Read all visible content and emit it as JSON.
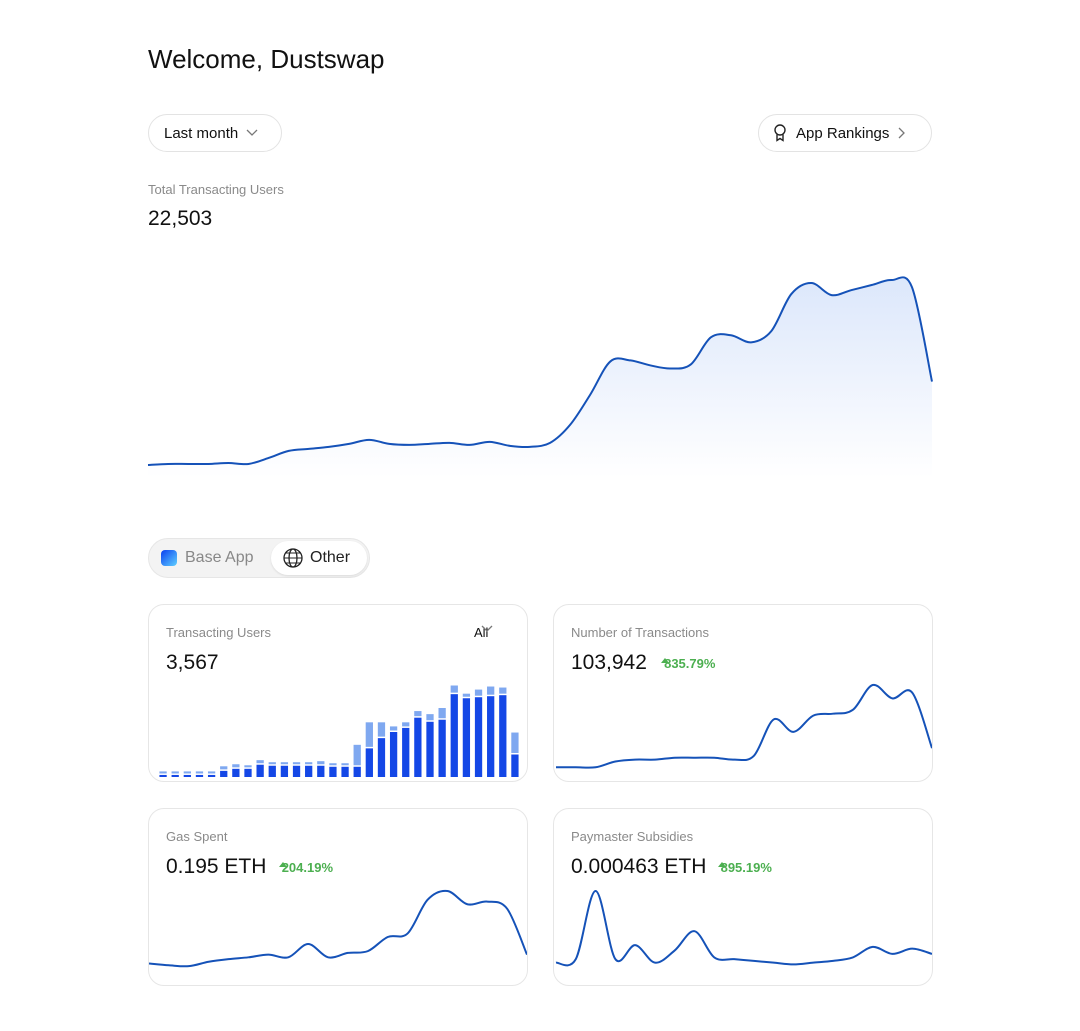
{
  "header": {
    "title": "Welcome, Dustswap",
    "period": "Last month",
    "rankings": "App Rankings"
  },
  "main": {
    "label": "Total Transacting Users",
    "value": "22,503",
    "chart_data": {
      "type": "area",
      "color": "#1552b8",
      "values": [
        5,
        6,
        6,
        6,
        7,
        6,
        12,
        19,
        21,
        23,
        26,
        30,
        26,
        25,
        26,
        27,
        25,
        28,
        24,
        23,
        27,
        45,
        75,
        108,
        109,
        104,
        101,
        105,
        132,
        134,
        127,
        138,
        175,
        186,
        174,
        179,
        184,
        189,
        182,
        88
      ]
    }
  },
  "tabs": [
    "Base App",
    "Other"
  ],
  "cards": [
    {
      "title": "Transacting Users",
      "value": "3,567",
      "filter": "All",
      "chart_data": {
        "type": "bar",
        "series": [
          {
            "color": "#1447e6",
            "values": [
              2,
              2,
              2,
              2,
              2,
              6,
              8,
              8,
              12,
              11,
              11,
              11,
              11,
              11,
              10,
              10,
              10,
              28,
              38,
              44,
              48,
              58,
              54,
              56,
              81,
              77,
              78,
              79,
              80,
              22
            ]
          },
          {
            "color": "#7fa8f0",
            "values": [
              2,
              2,
              2,
              2,
              2,
              3,
              3,
              2,
              3,
              2,
              2,
              2,
              2,
              3,
              2,
              2,
              20,
              24,
              14,
              4,
              4,
              5,
              6,
              10,
              7,
              3,
              6,
              8,
              6,
              20
            ]
          }
        ]
      }
    },
    {
      "title": "Number of Transactions",
      "value": "103,942",
      "change": "835.79%",
      "chart_data": {
        "type": "line",
        "color": "#1552b8",
        "values": [
          6,
          6,
          6,
          12,
          14,
          14,
          16,
          16,
          16,
          14,
          18,
          56,
          43,
          60,
          62,
          66,
          92,
          78,
          84,
          26
        ]
      }
    },
    {
      "title": "Gas Spent",
      "value": "0.195 ETH",
      "change": "204.19%",
      "chart_data": {
        "type": "line",
        "color": "#1552b8",
        "values": [
          13,
          11,
          10,
          15,
          18,
          20,
          23,
          20,
          35,
          20,
          25,
          27,
          43,
          47,
          85,
          95,
          80,
          83,
          75,
          23
        ]
      }
    },
    {
      "title": "Paymaster Subsidies",
      "value": "0.000463 ETH",
      "change": "895.19%",
      "chart_data": {
        "type": "line",
        "color": "#1552b8",
        "values": [
          13,
          17,
          95,
          17,
          33,
          13,
          27,
          49,
          19,
          17,
          15,
          13,
          11,
          13,
          15,
          19,
          31,
          23,
          29,
          23
        ]
      }
    }
  ]
}
